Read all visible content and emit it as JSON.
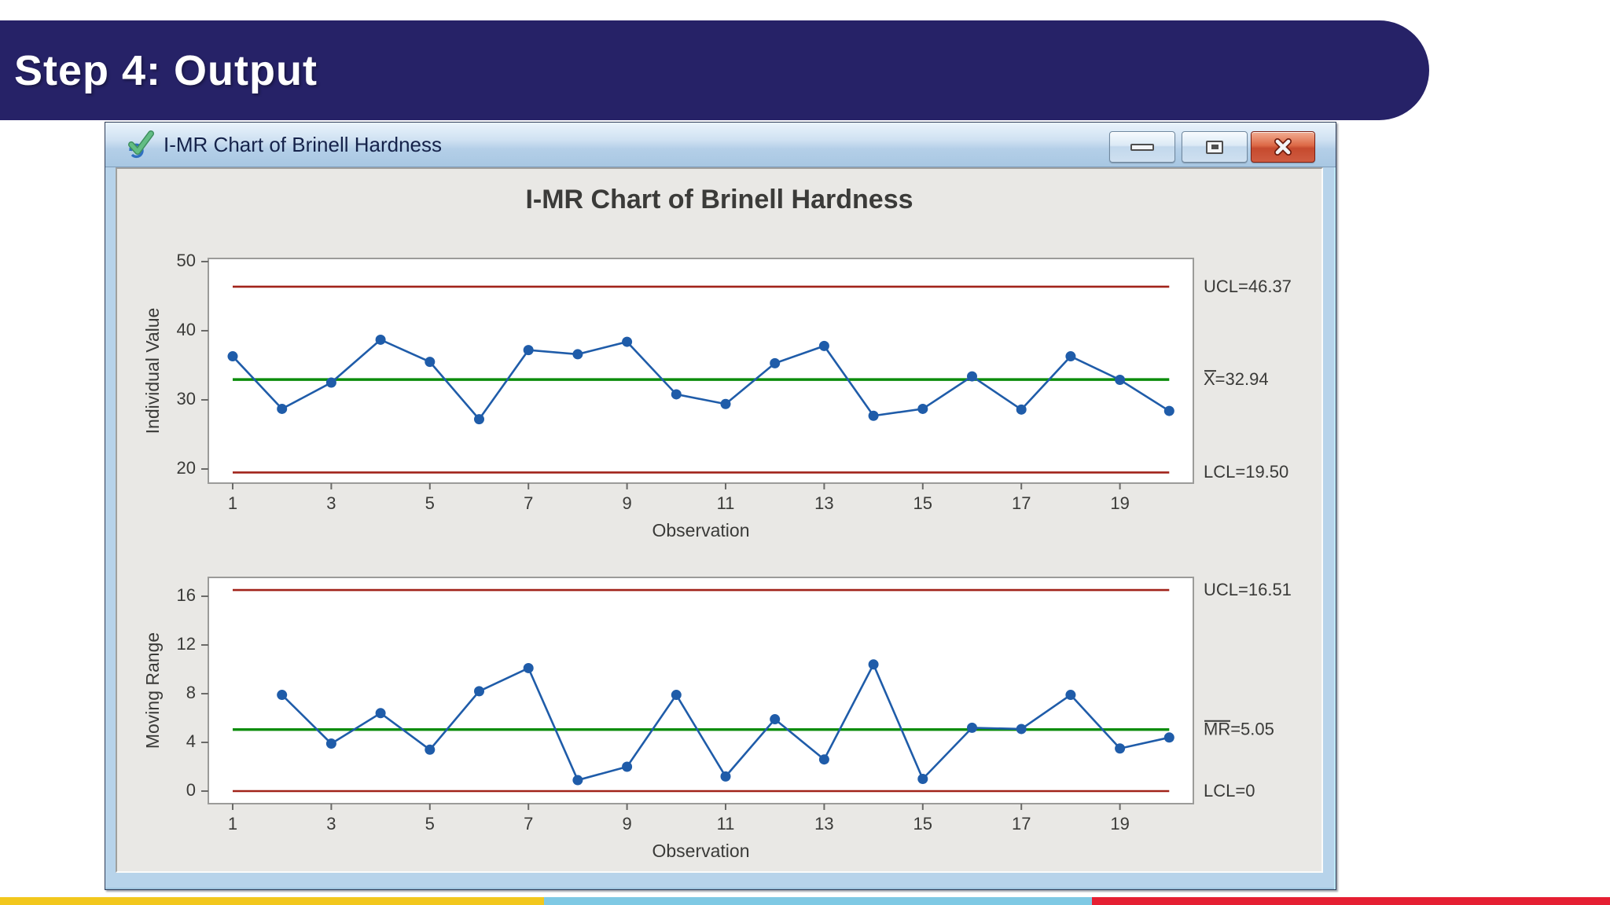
{
  "slide": {
    "header": {
      "title": "Step 4: Output",
      "bg_color": "#262267"
    },
    "footer_stripe_colors": [
      "#F2C71D",
      "#7FC9E4",
      "#E51F32"
    ]
  },
  "window": {
    "title": "I-MR Chart of Brinell Hardness",
    "icons": {
      "app": "minitab-graph-check-icon",
      "minimize": "minimize-icon",
      "restore": "restore-icon",
      "close": "close-icon"
    }
  },
  "graph": {
    "title": "I-MR Chart of Brinell Hardness"
  },
  "chart_data": [
    {
      "type": "line",
      "name": "individuals-chart",
      "title": "I-MR Chart of Brinell Hardness",
      "ylabel": "Individual Value",
      "xlabel": "Observation",
      "x": [
        1,
        2,
        3,
        4,
        5,
        6,
        7,
        8,
        9,
        10,
        11,
        12,
        13,
        14,
        15,
        16,
        17,
        18,
        19,
        20
      ],
      "values": [
        36.3,
        28.7,
        32.5,
        38.7,
        35.5,
        27.2,
        37.2,
        36.6,
        38.4,
        30.8,
        29.4,
        35.3,
        37.8,
        27.7,
        28.7,
        33.4,
        28.6,
        36.3,
        32.9,
        28.4
      ],
      "center_line": 32.94,
      "ucl": 46.37,
      "lcl": 19.5,
      "annotations": [
        {
          "text": "UCL=46.37",
          "value": 46.37,
          "overline_chars": 0
        },
        {
          "text": "X=32.94",
          "value": 32.94,
          "overline_chars": 1
        },
        {
          "text": "LCL=19.50",
          "value": 19.5,
          "overline_chars": 0
        }
      ],
      "yticks": [
        20,
        30,
        40,
        50
      ],
      "xticks": [
        1,
        3,
        5,
        7,
        9,
        11,
        13,
        15,
        17,
        19
      ],
      "ylim": [
        18.0,
        50.5
      ],
      "grid": false,
      "legend": "none",
      "line_color": "#1F5CA9",
      "center_color": "#0B8C0B",
      "limit_color": "#A1231A",
      "plot_bg": "#FFFFFF"
    },
    {
      "type": "line",
      "name": "moving-range-chart",
      "ylabel": "Moving Range",
      "xlabel": "Observation",
      "x": [
        2,
        3,
        4,
        5,
        6,
        7,
        8,
        9,
        10,
        11,
        12,
        13,
        14,
        15,
        16,
        17,
        18,
        19,
        20
      ],
      "values": [
        7.9,
        3.9,
        6.4,
        3.4,
        8.2,
        10.1,
        0.9,
        2.0,
        7.9,
        1.2,
        5.9,
        2.6,
        10.4,
        1.0,
        5.2,
        5.1,
        7.9,
        3.5,
        4.4
      ],
      "center_line": 5.05,
      "ucl": 16.51,
      "lcl": 0,
      "annotations": [
        {
          "text": "UCL=16.51",
          "value": 16.51,
          "overline_chars": 0
        },
        {
          "text": "MR=5.05",
          "value": 5.05,
          "overline_chars": 2
        },
        {
          "text": "LCL=0",
          "value": 0,
          "overline_chars": 0
        }
      ],
      "yticks": [
        0,
        4,
        8,
        12,
        16
      ],
      "xticks": [
        1,
        3,
        5,
        7,
        9,
        11,
        13,
        15,
        17,
        19
      ],
      "ylim": [
        -1.0,
        17.5
      ],
      "grid": false,
      "legend": "none",
      "line_color": "#1F5CA9",
      "center_color": "#0B8C0B",
      "limit_color": "#A1231A",
      "plot_bg": "#FFFFFF"
    }
  ]
}
